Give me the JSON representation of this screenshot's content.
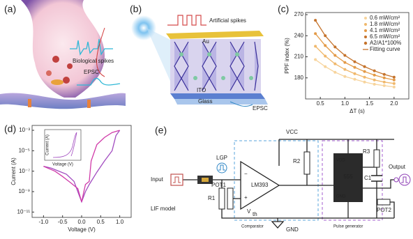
{
  "panels": {
    "a": "(a)",
    "b": "(b)",
    "c": "(c)",
    "d": "(d)",
    "e": "(e)"
  },
  "panel_a": {
    "biological_spikes": "Biological spikes",
    "epsc": "EPSC"
  },
  "panel_b": {
    "artificial_spikes": "Artificial spikes",
    "au": "Au",
    "ito": "ITO",
    "glass": "Glass",
    "epsc": "EPSC"
  },
  "panel_d_inset": {
    "ylabel": "Current (A)",
    "xlabel": "Voltage (V)"
  },
  "circuit": {
    "input": "Input",
    "lgp": "LGP",
    "r1": "R1",
    "pot1": "POT1",
    "vth_symbol": "V",
    "vth_subscript": "th",
    "comparator_chip": "LM393",
    "r2": "R2",
    "vcc": "VCC",
    "gnd": "GND",
    "comparator": "Comparator",
    "timer_chip": "555",
    "pin_vdd": "VDD",
    "pin_gnd": "GND",
    "r3": "R3",
    "c1": "C1",
    "output": "Output",
    "pot2": "POT2",
    "pulse_generator": "Pulse generator",
    "model": "LIF model"
  },
  "chart_data": [
    {
      "type": "line",
      "markers": true,
      "xlabel": "ΔT (s)",
      "ylabel": "PPF index (%)",
      "x": [
        0.4,
        0.6,
        0.8,
        1.0,
        1.2,
        1.4,
        1.6,
        1.8,
        2.0
      ],
      "series": [
        {
          "name": "0.6 mW/cm²",
          "color": "#f7d49c",
          "values": [
            206,
            196,
            188,
            182,
            178,
            174,
            171,
            169,
            167
          ]
        },
        {
          "name": "1.8 mW/cm²",
          "color": "#f0b86c",
          "values": [
            225,
            211,
            200,
            192,
            186,
            181,
            177,
            174,
            172
          ]
        },
        {
          "name": "4.1 mW/cm²",
          "color": "#e39a47",
          "values": [
            243,
            226,
            212,
            202,
            195,
            189,
            184,
            180,
            177
          ]
        },
        {
          "name": "6.5 mW/cm²",
          "color": "#c5732c",
          "values": [
            262,
            240,
            224,
            212,
            203,
            196,
            190,
            185,
            181
          ]
        }
      ],
      "legend_notes": [
        "A2/A1*100%",
        "Fitting curve"
      ],
      "legend": "upper right",
      "xlim": [
        0.2,
        2.3
      ],
      "ylim": [
        150,
        273
      ],
      "xticks": [
        0.5,
        {
          "value": 1,
          "label": "1.0"
        },
        1.5,
        {
          "value": 2,
          "label": "2.0"
        }
      ],
      "yticks": [
        180,
        210,
        240,
        270
      ],
      "log_y": false
    },
    {
      "type": "line",
      "markers": false,
      "xlabel": "Voltage (V)",
      "ylabel": "Current (A)",
      "series": [
        {
          "color": "#a24cc0",
          "x": [
            -1.0,
            -0.8,
            -0.6,
            -0.4,
            -0.2,
            -0.1,
            0.0,
            0.1,
            0.2,
            0.4,
            0.6,
            0.8,
            0.9,
            1.0
          ],
          "values": [
            3e-07,
            2e-07,
            1e-07,
            5e-08,
            1e-08,
            1e-09,
            1e-10,
            1e-09,
            5e-09,
            8e-08,
            1e-06,
            1e-05,
            0.0003,
            0.001
          ]
        },
        {
          "color": "#d03aa8",
          "x": [
            1.0,
            0.8,
            0.6,
            0.4,
            0.25,
            0.2,
            0.1,
            0.0,
            -0.1,
            -0.3,
            -0.5,
            -0.7,
            -1.0
          ],
          "values": [
            0.001,
            0.0006,
            0.0002,
            4e-05,
            1e-06,
            1e-08,
            5e-09,
            1e-10,
            2e-09,
            8e-09,
            3e-08,
            1e-07,
            3e-07
          ]
        }
      ],
      "xlim": [
        -1.3,
        1.3
      ],
      "ylim": [
        3e-12,
        0.003
      ],
      "xticks": [
        {
          "value": -1,
          "label": "-1.0"
        },
        -0.5,
        {
          "value": 0,
          "label": "0.0"
        },
        0.5,
        {
          "value": 1,
          "label": "1.0"
        }
      ],
      "yticks": [
        {
          "value": 0.001,
          "label": "10⁻³"
        },
        {
          "value": 1e-05,
          "label": "10⁻⁵"
        },
        {
          "value": 1e-07,
          "label": "10⁻⁷"
        },
        {
          "value": 1e-09,
          "label": "10⁻⁹"
        },
        {
          "value": 1e-11,
          "label": "10⁻¹¹"
        }
      ],
      "log_y": true
    }
  ]
}
